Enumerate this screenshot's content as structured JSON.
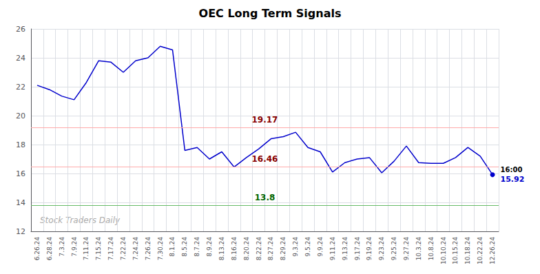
{
  "chart_data": {
    "type": "line",
    "title": "OEC Long Term Signals",
    "watermark": "Stock Traders Daily",
    "categories": [
      "6.26.24",
      "6.28.24",
      "7.3.24",
      "7.9.24",
      "7.11.24",
      "7.15.24",
      "7.17.24",
      "7.22.24",
      "7.24.24",
      "7.26.24",
      "7.30.24",
      "8.1.24",
      "8.5.24",
      "8.7.24",
      "8.9.24",
      "8.13.24",
      "8.16.24",
      "8.20.24",
      "8.22.24",
      "8.27.24",
      "8.29.24",
      "9.3.24",
      "9.5.24",
      "9.9.24",
      "9.11.24",
      "9.13.24",
      "9.17.24",
      "9.19.24",
      "9.23.24",
      "9.25.24",
      "9.27.24",
      "10.3.24",
      "10.8.24",
      "10.10.24",
      "10.15.24",
      "10.18.24",
      "10.22.24",
      "12.26.24"
    ],
    "values": [
      22.1,
      21.8,
      21.35,
      21.1,
      22.3,
      23.8,
      23.7,
      23.0,
      23.8,
      24.0,
      24.8,
      24.55,
      17.6,
      17.8,
      17.0,
      17.5,
      16.45,
      17.1,
      17.7,
      18.4,
      18.55,
      18.85,
      17.8,
      17.5,
      16.1,
      16.75,
      17.0,
      17.1,
      16.05,
      16.85,
      17.9,
      16.75,
      16.7,
      16.7,
      17.1,
      17.8,
      17.2,
      15.92
    ],
    "color": "#0000cc",
    "hlines": [
      {
        "y": 19.17,
        "color": "#ffaaaa",
        "label": "19.17",
        "label_color": "#880000"
      },
      {
        "y": 16.46,
        "color": "#ffaaaa",
        "label": "16.46",
        "label_color": "#880000"
      },
      {
        "y": 13.8,
        "color": "#66bb66",
        "label": "13.8",
        "label_color": "#006600"
      }
    ],
    "last_time_label": "16:00",
    "last_value_label": "15.92",
    "ylim": [
      12,
      26
    ],
    "yticks": [
      12,
      14,
      16,
      18,
      20,
      22,
      24,
      26
    ],
    "grid": true
  }
}
